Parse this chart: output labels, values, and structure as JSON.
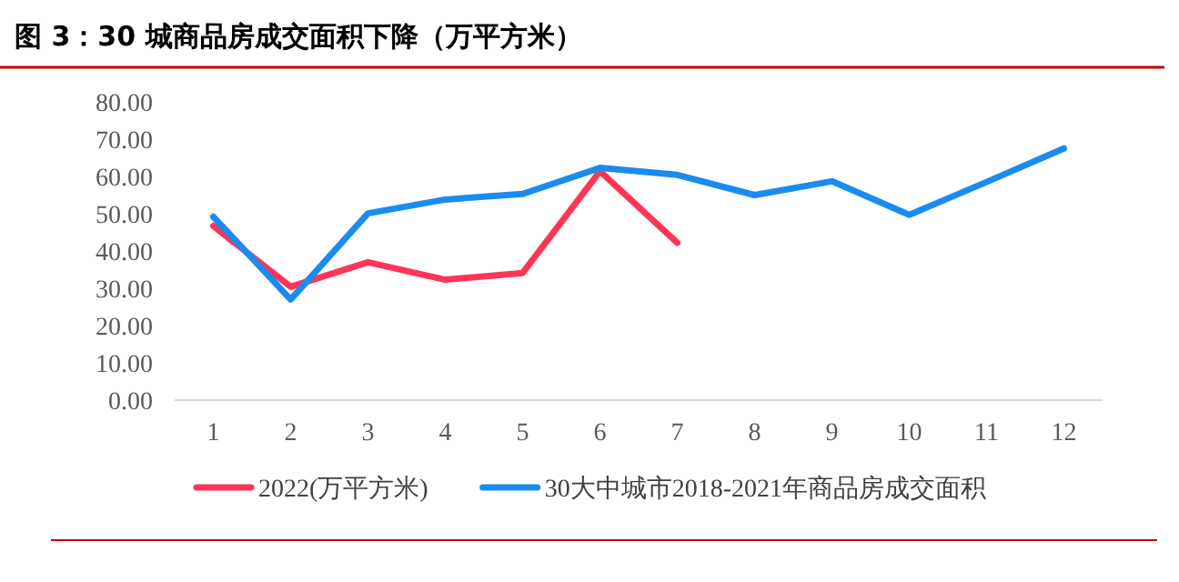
{
  "chart_data": {
    "type": "line",
    "title": "图 3：30 城商品房成交面积下降（万平方米）",
    "categories": [
      "1",
      "2",
      "3",
      "4",
      "5",
      "6",
      "7",
      "8",
      "9",
      "10",
      "11",
      "12"
    ],
    "series": [
      {
        "name": "2022(万平方米)",
        "color": "#fe3557",
        "values": [
          46.7,
          30.4,
          37.0,
          32.3,
          34.1,
          61.4,
          42.2,
          null,
          null,
          null,
          null,
          null
        ]
      },
      {
        "name": "30大中城市2018-2021年商品房成交面积",
        "color": "#1a8cf0",
        "values": [
          49.2,
          27.0,
          50.1,
          53.8,
          55.3,
          62.3,
          60.4,
          55.0,
          58.7,
          49.7,
          58.5,
          67.5
        ]
      }
    ],
    "ylim": [
      0,
      80
    ],
    "yticks": [
      {
        "value": 0,
        "label": "0.00"
      },
      {
        "value": 10,
        "label": "10.00"
      },
      {
        "value": 20,
        "label": "20.00"
      },
      {
        "value": 30,
        "label": "30.00"
      },
      {
        "value": 40,
        "label": "40.00"
      },
      {
        "value": 50,
        "label": "50.00"
      },
      {
        "value": 60,
        "label": "60.00"
      },
      {
        "value": 70,
        "label": "70.00"
      },
      {
        "value": 80,
        "label": "80.00"
      }
    ],
    "grid": false,
    "legend": "bottom"
  }
}
